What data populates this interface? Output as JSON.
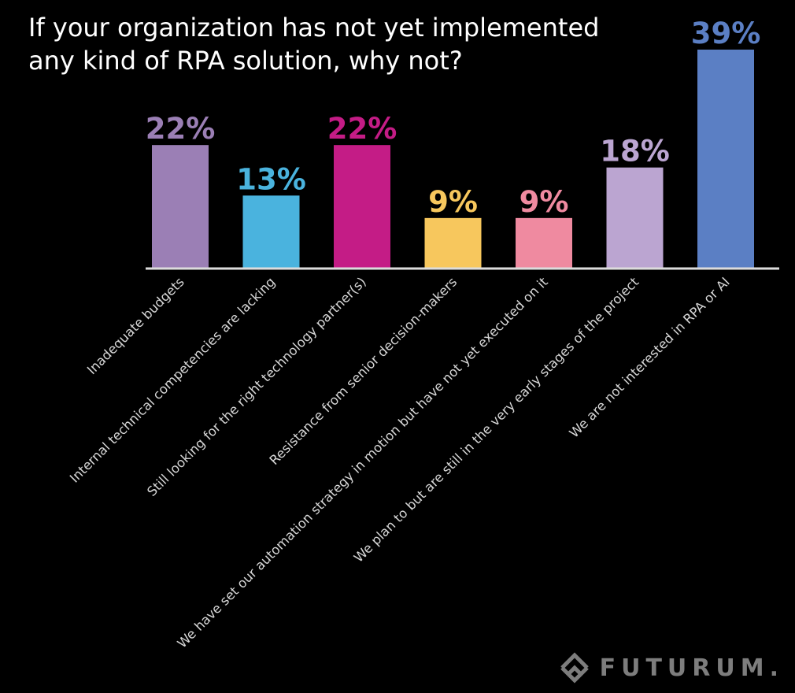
{
  "chart_data": {
    "type": "bar",
    "title_lines": [
      "If your organization has not yet implemented",
      "any kind of RPA solution, why not?"
    ],
    "categories": [
      "Inadequate budgets",
      "Internal technical competencies are lacking",
      "Still looking for the right technology partner(s)",
      "Resistance from senior decision-makers",
      "We have set our automation strategy in motion but have not yet executed on it",
      "We plan to but are still in the very early stages of the project",
      "We are not interested in RPA or AI"
    ],
    "values": [
      22,
      13,
      22,
      9,
      9,
      18,
      39
    ],
    "value_labels": [
      "22%",
      "13%",
      "22%",
      "9%",
      "9%",
      "18%",
      "39%"
    ],
    "colors": [
      "#9b7fb5",
      "#4ab3de",
      "#c41c86",
      "#f7c75d",
      "#ef8aa0",
      "#bba5d1",
      "#5b7fc4"
    ],
    "label_colors": [
      "#9b7fb5",
      "#4ab3de",
      "#c41c86",
      "#f7c75d",
      "#ef8aa0",
      "#bba5d1",
      "#5b7fc4"
    ],
    "ylim": [
      0,
      39
    ],
    "xlabel": "",
    "ylabel": "",
    "grid": false,
    "legend": "none"
  },
  "brand": {
    "name": "FUTURUM.",
    "logo_icon": "futurum-logo-icon",
    "color": "#7d7d7d"
  },
  "axis_color": "#dcdcdc",
  "background": "#000000"
}
